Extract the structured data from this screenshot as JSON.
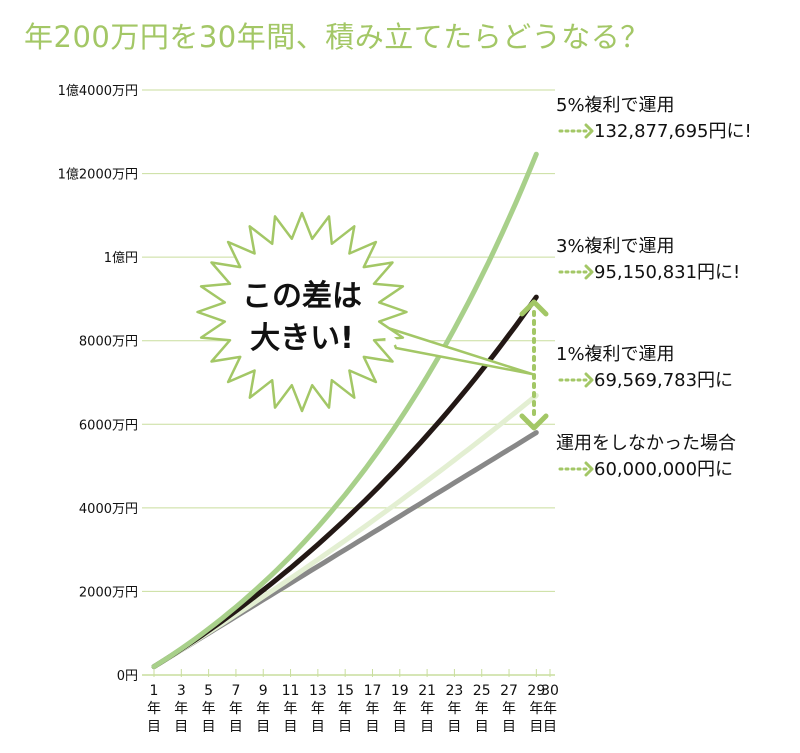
{
  "title": "年200万円を30年間、積み立てたらどうなる？",
  "chart_data": {
    "type": "line",
    "x_start": 1,
    "x_end": 30,
    "x_tick_labels": [
      "1年目",
      "3年目",
      "5年目",
      "7年目",
      "9年目",
      "11年目",
      "13年目",
      "15年目",
      "17年目",
      "19年目",
      "21年目",
      "23年目",
      "25年目",
      "27年目",
      "29年目",
      "30年目"
    ],
    "x_ticks": [
      1,
      3,
      5,
      7,
      9,
      11,
      13,
      15,
      17,
      19,
      21,
      23,
      25,
      27,
      29,
      30
    ],
    "ylim": [
      0,
      140000000
    ],
    "y_ticks": [
      {
        "value": 0,
        "label": "0円"
      },
      {
        "value": 20000000,
        "label": "2000万円"
      },
      {
        "value": 40000000,
        "label": "4000万円"
      },
      {
        "value": 60000000,
        "label": "6000万円"
      },
      {
        "value": 80000000,
        "label": "8000万円"
      },
      {
        "value": 100000000,
        "label": "1億円"
      },
      {
        "value": 120000000,
        "label": "1億2000万円"
      },
      {
        "value": 140000000,
        "label": "1億4000万円"
      }
    ],
    "annual_contribution": 2000000,
    "grid": true,
    "series": [
      {
        "name": "5%複利で運用",
        "rate": 0.05,
        "final_value_label": "132,877,695円に!",
        "color": "#a8d08a",
        "width": 5
      },
      {
        "name": "3%複利で運用",
        "rate": 0.03,
        "final_value_label": "95,150,831円に!",
        "color": "#231815",
        "width": 5
      },
      {
        "name": "1%複利で運用",
        "rate": 0.01,
        "final_value_label": "69,569,783円に",
        "color": "#e3efd2",
        "width": 5
      },
      {
        "name": "運用をしなかった場合",
        "rate": 0.0,
        "final_value_label": "60,000,000円に",
        "color": "#888888",
        "width": 5
      }
    ],
    "annotation": {
      "text_line1": "この差は",
      "text_line2": "大きい!"
    }
  },
  "colors": {
    "accent": "#a3c766",
    "grid": "#c9de9e",
    "dotted": "#a3c766"
  }
}
